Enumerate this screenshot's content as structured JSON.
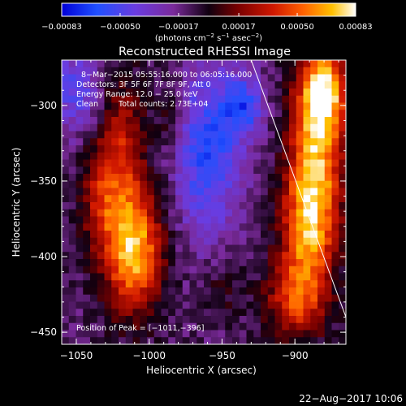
{
  "chart_data": {
    "type": "heatmap",
    "title": "Reconstructed RHESSI Image",
    "xlabel": "Heliocentric X (arcsec)",
    "ylabel": "Heliocentric Y (arcsec)",
    "xlim": [
      -1060,
      -865
    ],
    "ylim": [
      -458,
      -270
    ],
    "x_ticks": [
      -1050,
      -1000,
      -950,
      -900
    ],
    "x_tick_labels": [
      "−1050",
      "−1000",
      "−950",
      "−900"
    ],
    "y_ticks": [
      -300,
      -350,
      -400,
      -450
    ],
    "y_tick_labels": [
      "−300",
      "−350",
      "−400",
      "−450"
    ],
    "colorbar": {
      "range": [
        -0.00083,
        0.00083
      ],
      "tick_values": [
        -0.00083,
        -0.0005,
        -0.00017,
        0.00017,
        0.0005,
        0.00083
      ],
      "tick_labels": [
        "−0.00083",
        "−0.00050",
        "−0.00017",
        "0.00017",
        "0.00050",
        "0.00083"
      ],
      "unit_prefix": "(photons cm",
      "unit_exp1": "−2",
      "unit_mid": " s",
      "unit_exp2": "−1",
      "unit_mid2": " asec",
      "unit_exp3": "−2",
      "unit_suffix": ")"
    },
    "annotations": {
      "time_range": "8−Mar−2015 05:55:16.000 to 06:05:16.000",
      "detectors": "Detectors: 3F 5F 6F 7F 8F 9F, Att 0",
      "energy": "Energy Range: 12.0 − 25.0 keV",
      "method": "Clean",
      "counts": "Total counts: 2.73E+04",
      "peak": "Position of Peak = [−1011,−396]"
    },
    "peak": {
      "x": -1011,
      "y": -396
    },
    "sources": [
      {
        "x": -1011,
        "y": -396,
        "sx": 14,
        "sy": 28,
        "amp": 0.00083
      },
      {
        "x": -1020,
        "y": -330,
        "sx": 12,
        "sy": 35,
        "amp": 0.00045
      },
      {
        "x": -1035,
        "y": -365,
        "sx": 9,
        "sy": 22,
        "amp": 0.0003
      },
      {
        "x": -885,
        "y": -330,
        "sx": 13,
        "sy": 40,
        "amp": 0.00072
      },
      {
        "x": -880,
        "y": -290,
        "sx": 11,
        "sy": 18,
        "amp": 0.00068
      },
      {
        "x": -892,
        "y": -385,
        "sx": 13,
        "sy": 30,
        "amp": 0.0006
      },
      {
        "x": -900,
        "y": -430,
        "sx": 15,
        "sy": 18,
        "amp": 0.00045
      },
      {
        "x": -985,
        "y": -305,
        "sx": 7,
        "sy": 18,
        "amp": 0.0002
      },
      {
        "x": -950,
        "y": -420,
        "sx": 10,
        "sy": 15,
        "amp": 0.00015
      },
      {
        "x": -960,
        "y": -330,
        "sx": 16,
        "sy": 40,
        "amp": -0.0005
      },
      {
        "x": -935,
        "y": -300,
        "sx": 10,
        "sy": 14,
        "amp": -0.00045
      },
      {
        "x": -1050,
        "y": -290,
        "sx": 14,
        "sy": 20,
        "amp": -0.00035
      }
    ],
    "limb_line": [
      [
        -930,
        -270
      ],
      [
        -865,
        -440
      ]
    ]
  },
  "footer": {
    "date": "22−Aug−2017 10:06"
  },
  "colors": {
    "background": "#000000",
    "text": "#ffffff"
  }
}
